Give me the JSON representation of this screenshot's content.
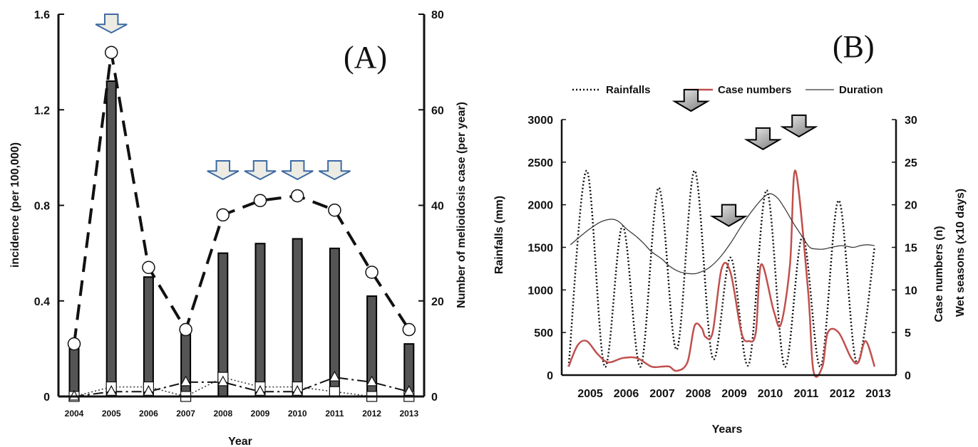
{
  "chart_data": [
    {
      "panel_label": "(A)",
      "type": "bar",
      "categories": [
        "2004",
        "2005",
        "2006",
        "2007",
        "2008",
        "2009",
        "2010",
        "2011",
        "2012",
        "2013"
      ],
      "xlabel": "Year",
      "ylabel_left": "incidence (per 100,000)",
      "ylabel_right": "Number of melioidosis case (per year)",
      "ylim_left": [
        0,
        1.6
      ],
      "ylim_right": [
        0,
        80
      ],
      "yticks_left": [
        "0",
        "0.4",
        "0.8",
        "1.2",
        "1.6"
      ],
      "yticks_right": [
        "0",
        "20",
        "40",
        "60",
        "80"
      ],
      "series": [
        {
          "type": "bar",
          "axis": "right",
          "color": "#555555",
          "values": [
            10,
            66,
            25,
            14,
            30,
            32,
            33,
            31,
            21,
            11
          ]
        },
        {
          "type": "line",
          "axis": "left",
          "style": "dashed",
          "marker": "circle",
          "values": [
            0.22,
            1.44,
            0.54,
            0.28,
            0.76,
            0.82,
            0.84,
            0.78,
            0.52,
            0.28
          ]
        },
        {
          "type": "line",
          "axis": "right",
          "style": "dash-dot",
          "marker": "triangle",
          "values": [
            0,
            1,
            1,
            3,
            3,
            1,
            1,
            4,
            3,
            1
          ]
        },
        {
          "type": "line",
          "axis": "right",
          "style": "dotted",
          "marker": "square",
          "values": [
            0,
            2,
            2,
            0,
            4,
            2,
            2,
            1,
            0,
            0
          ]
        }
      ],
      "arrows": [
        "2005",
        "2008",
        "2009",
        "2010",
        "2011"
      ]
    },
    {
      "panel_label": "(B)",
      "type": "line",
      "xlabel": "Years",
      "ylabel_left": "Rainfalls (mm)",
      "ylabel_right": "Case numbers (n)",
      "ylabel_right2": "Wet seasons (x10 days)",
      "ylim_left": [
        0,
        3000
      ],
      "ylim_right": [
        0,
        30
      ],
      "yticks_left": [
        "0",
        "500",
        "1000",
        "1500",
        "2000",
        "2500",
        "3000"
      ],
      "yticks_right": [
        "0",
        "5",
        "10",
        "15",
        "20",
        "25",
        "30"
      ],
      "xticks": [
        "2005",
        "2006",
        "2007",
        "2008",
        "2009",
        "2010",
        "2011",
        "2012",
        "2013"
      ],
      "legend": [
        "Rainfalls",
        "Case numbers",
        "Duration"
      ],
      "legend_position": "top",
      "series": [
        {
          "name": "Rainfalls",
          "axis": "left",
          "style": "dotted",
          "color": "#111111",
          "x": [
            2004.4,
            2004.9,
            2005.4,
            2005.9,
            2006.4,
            2006.9,
            2007.4,
            2007.9,
            2008.4,
            2008.9,
            2009.4,
            2009.9,
            2010.4,
            2010.9,
            2011.4,
            2011.9,
            2012.4,
            2012.9
          ],
          "y": [
            100,
            2400,
            100,
            1750,
            100,
            2200,
            300,
            2400,
            200,
            1380,
            120,
            2170,
            100,
            1630,
            100,
            2050,
            150,
            1500
          ]
        },
        {
          "name": "Case numbers",
          "axis": "right",
          "style": "solid",
          "color": "#c0504d",
          "x": [
            2004.4,
            2004.65,
            2004.9,
            2005.2,
            2005.5,
            2005.9,
            2006.3,
            2006.7,
            2007.0,
            2007.2,
            2007.4,
            2007.7,
            2007.9,
            2008.1,
            2008.2,
            2008.4,
            2008.65,
            2008.9,
            2009.2,
            2009.4,
            2009.6,
            2009.75,
            2010.1,
            2010.3,
            2010.55,
            2010.7,
            2011.05,
            2011.2,
            2011.45,
            2011.6,
            2011.9,
            2012.25,
            2012.45,
            2012.65,
            2012.9
          ],
          "y": [
            1,
            3.5,
            4,
            2.5,
            1.5,
            2,
            2,
            1,
            1,
            1,
            0.5,
            1.5,
            5.8,
            5.5,
            4.5,
            5,
            12.5,
            12,
            5,
            4,
            5,
            13,
            7.5,
            6,
            13,
            24,
            10,
            0.5,
            1,
            5,
            5,
            2,
            1.5,
            4,
            1
          ]
        },
        {
          "name": "Duration",
          "axis": "right",
          "style": "solid",
          "color": "#333333",
          "x": [
            2004.45,
            2004.7,
            2005.0,
            2005.3,
            2005.6,
            2005.8,
            2006.0,
            2006.3,
            2006.5,
            2006.7,
            2007.0,
            2007.2,
            2007.5,
            2007.8,
            2008.0,
            2008.3,
            2008.6,
            2008.9,
            2009.2,
            2009.5,
            2009.8,
            2010.0,
            2010.2,
            2010.4,
            2010.65,
            2010.9,
            2011.1,
            2011.3,
            2011.5,
            2011.7,
            2012.0,
            2012.3,
            2012.5,
            2012.7,
            2012.9
          ],
          "y": [
            15.3,
            16.2,
            17.2,
            18.0,
            18.3,
            18.0,
            17.2,
            16.2,
            15.4,
            14.5,
            13.6,
            12.8,
            12.1,
            11.9,
            12.0,
            12.6,
            13.8,
            15.5,
            17.5,
            19.3,
            20.8,
            21.3,
            20.8,
            19.6,
            17.8,
            16.2,
            15.0,
            14.8,
            14.8,
            15.0,
            15.2,
            15.0,
            15.2,
            15.3,
            15.2
          ]
        }
      ],
      "arrows": [
        {
          "x": 2007.8,
          "y_right": 31
        },
        {
          "x": 2008.85,
          "y_right": 17.5
        },
        {
          "x": 2009.8,
          "y_right": 26.5
        },
        {
          "x": 2010.8,
          "y_right": 28
        }
      ]
    }
  ]
}
